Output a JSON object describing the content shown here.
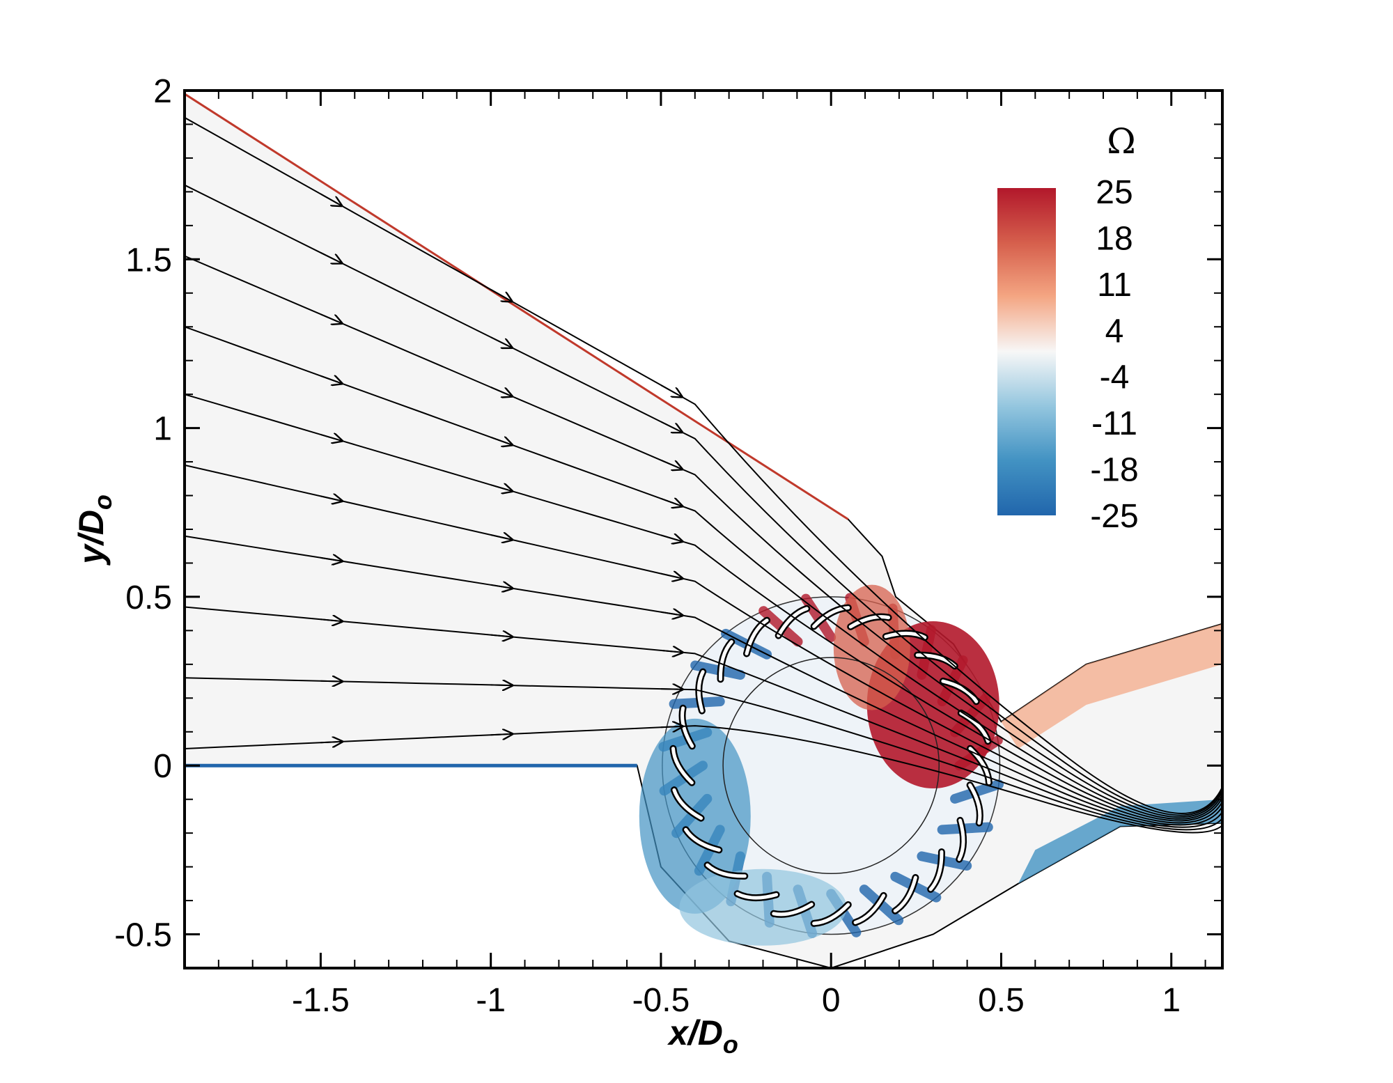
{
  "chart_data": {
    "type": "heatmap",
    "xlabel": "x/D",
    "xlabel_sub": "o",
    "ylabel": "y/D",
    "ylabel_sub": "o",
    "xlim": [
      -1.9,
      1.15
    ],
    "ylim": [
      -0.6,
      2.0
    ],
    "xticks": [
      -1.5,
      -1,
      -0.5,
      0,
      0.5,
      1
    ],
    "xtick_labels": [
      "-1.5",
      "-1",
      "-0.5",
      "0",
      "0.5",
      "1"
    ],
    "yticks": [
      -0.5,
      0,
      0.5,
      1,
      1.5,
      2
    ],
    "ytick_labels": [
      "-0.5",
      "0",
      "0.5",
      "1",
      "1.5",
      "2"
    ],
    "grid": false,
    "legend": {
      "title": "Ω",
      "placement": "top-right",
      "levels": [
        "25",
        "18",
        "11",
        "4",
        "-4",
        "-11",
        "-18",
        "-25"
      ],
      "colors": [
        "#b2182b",
        "#ef8a62",
        "#fddbc7",
        "#f7f7f7",
        "#d1e5f0",
        "#67a9cf",
        "#2166ac"
      ]
    },
    "rotor": {
      "center": [
        0.0,
        0.0
      ],
      "outer_radius": 0.5,
      "inner_radius": 0.32,
      "blade_count": 24
    },
    "streamlines_inlet_y": [
      0.05,
      0.26,
      0.47,
      0.68,
      0.89,
      1.1,
      1.3,
      1.51,
      1.72,
      1.92
    ]
  }
}
